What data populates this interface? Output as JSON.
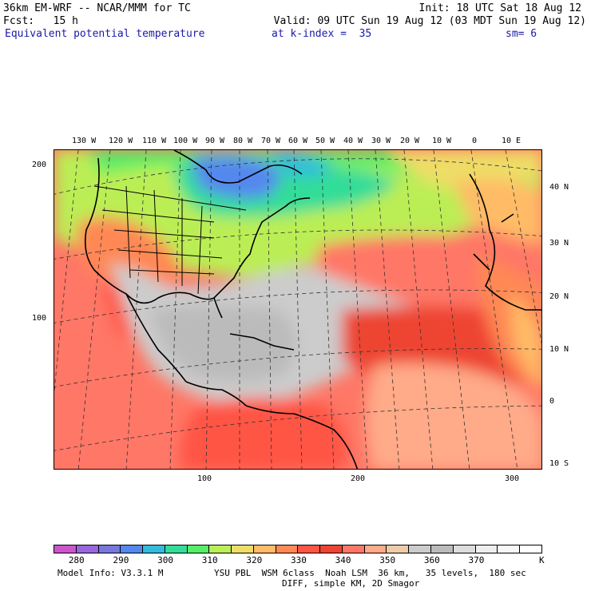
{
  "header": {
    "model": "36km EM-WRF -- NCAR/MMM for TC",
    "init": "Init: 18 UTC Sat 18 Aug 12",
    "fcst": "Fcst:   15 h",
    "valid": "Valid: 09 UTC Sun 19 Aug 12 (03 MDT Sun 19 Aug 12)",
    "field": "Equivalent potential temperature",
    "level": "at k-index =  35",
    "smooth": "sm= 6"
  },
  "top_lon_labels": [
    "130 W",
    "120 W",
    "110 W",
    "100 W",
    "90 W",
    "80 W",
    "70 W",
    "60 W",
    "50 W",
    "40 W",
    "30 W",
    "20 W",
    "10 W",
    "0",
    "10 E"
  ],
  "right_lat_labels": [
    "40 N",
    "30 N",
    "20 N",
    "10 N",
    "0",
    "10 S"
  ],
  "left_grid_labels": [
    "200",
    "100"
  ],
  "bottom_grid_labels": [
    "100",
    "200",
    "300"
  ],
  "colorbar": {
    "colors": [
      "#cc55cc",
      "#9966dd",
      "#7777dd",
      "#5588ee",
      "#33bbdd",
      "#33dd99",
      "#55ee66",
      "#bbee55",
      "#eedd66",
      "#ffbb66",
      "#ff8855",
      "#ff5544",
      "#ee4433",
      "#ff7766",
      "#ffaa88",
      "#eeccaa",
      "#cccccc",
      "#bbbbbb",
      "#dddddd",
      "#eeeeee",
      "#f7f7f7",
      "#ffffff"
    ],
    "labels": [
      "280",
      "290",
      "300",
      "310",
      "320",
      "330",
      "340",
      "350",
      "360",
      "370"
    ],
    "unit": "K"
  },
  "footer": {
    "left": "Model Info: V3.3.1 M",
    "right_line1": "YSU PBL  WSM 6class  Noah LSM  36 km,   35 levels,  180 sec",
    "right_line2": "DIFF, simple KM, 2D Smagor"
  }
}
